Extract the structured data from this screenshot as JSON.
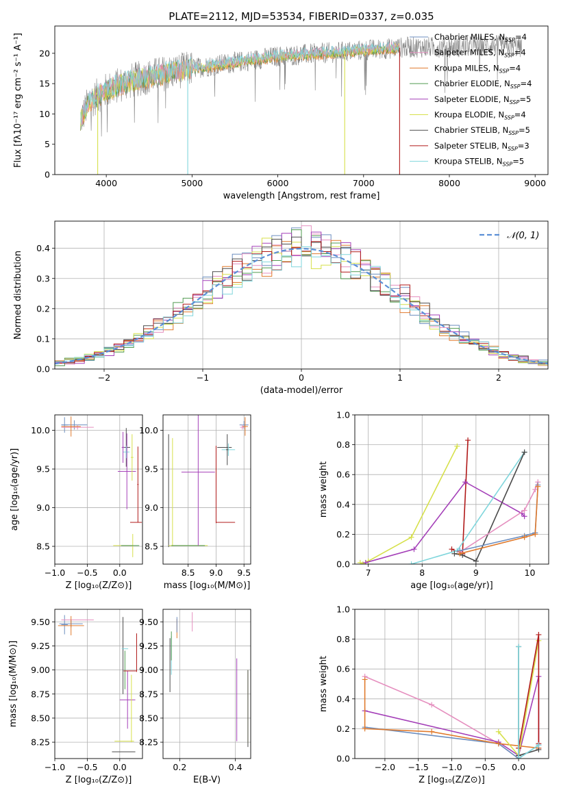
{
  "figure_title": "PLATE=2112, MJD=53534, FIBERID=0337, z=0.035",
  "colors": {
    "chabrier_miles": "#6c8ebf",
    "salpeter_miles": "#e58fbf",
    "kroupa_miles": "#e07a2c",
    "chabrier_elodie": "#4f9a4f",
    "salpeter_elodie": "#a43fb8",
    "kroupa_elodie": "#d6e04a",
    "chabrier_stelib": "#4a4a4a",
    "salpeter_stelib": "#b01818",
    "kroupa_stelib": "#7fd6dc",
    "gauss": "#5b8fd6"
  },
  "chart_data": [
    {
      "id": "spectrum",
      "type": "line",
      "xlabel": "wavelength [Angstrom, rest frame]",
      "ylabel": "Flux [fλ10⁻¹⁷ erg cm⁻² s⁻¹ A⁻¹]",
      "xlim": [
        3400,
        9150
      ],
      "ylim": [
        0,
        24.5
      ],
      "xticks": [
        4000,
        5000,
        6000,
        7000,
        8000,
        9000
      ],
      "yticks": [
        0,
        5,
        10,
        15,
        20
      ],
      "observed_range": [
        3700,
        8850
      ],
      "continuum_knots": [
        [
          3700,
          9
        ],
        [
          3800,
          12
        ],
        [
          3950,
          13.5
        ],
        [
          4100,
          14.5
        ],
        [
          4300,
          15.5
        ],
        [
          4600,
          16.5
        ],
        [
          5000,
          17.5
        ],
        [
          5500,
          18.5
        ],
        [
          6000,
          19.5
        ],
        [
          6500,
          20
        ],
        [
          7000,
          20.5
        ],
        [
          7500,
          21
        ],
        [
          8000,
          21
        ],
        [
          8500,
          21.3
        ],
        [
          8850,
          21
        ]
      ],
      "model_range": [
        3700,
        7420
      ],
      "model_drops": [
        {
          "x": 3900,
          "series": "Kroupa ELODIE"
        },
        {
          "x": 4950,
          "series": "Kroupa STELIB"
        },
        {
          "x": 6780,
          "series": "Kroupa ELODIE"
        },
        {
          "x": 7420,
          "series": "Salpeter STELIB"
        }
      ],
      "legend": [
        {
          "label": "Chabrier MILES, N",
          "sub": "SSP",
          "val": "=4",
          "color_key": "chabrier_miles"
        },
        {
          "label": "Salpeter MILES, N",
          "sub": "SSP",
          "val": "=4",
          "color_key": "salpeter_miles"
        },
        {
          "label": "Kroupa MILES, N",
          "sub": "SSP",
          "val": "=4",
          "color_key": "kroupa_miles"
        },
        {
          "label": "Chabrier ELODIE, N",
          "sub": "SSP",
          "val": "=4",
          "color_key": "chabrier_elodie"
        },
        {
          "label": "Salpeter ELODIE, N",
          "sub": "SSP",
          "val": "=5",
          "color_key": "salpeter_elodie"
        },
        {
          "label": "Kroupa ELODIE, N",
          "sub": "SSP",
          "val": "=4",
          "color_key": "kroupa_elodie"
        },
        {
          "label": "Chabrier STELIB, N",
          "sub": "SSP",
          "val": "=5",
          "color_key": "chabrier_stelib"
        },
        {
          "label": "Salpeter STELIB, N",
          "sub": "SSP",
          "val": "=3",
          "color_key": "salpeter_stelib"
        },
        {
          "label": "Kroupa STELIB, N",
          "sub": "SSP",
          "val": "=5",
          "color_key": "kroupa_stelib"
        }
      ]
    },
    {
      "id": "residuals",
      "type": "line",
      "xlabel": "(data-model)/error",
      "ylabel": "Normed distribution",
      "xlim": [
        -2.5,
        2.5
      ],
      "ylim": [
        0,
        0.49
      ],
      "xticks": [
        -2,
        -1,
        0,
        1,
        2
      ],
      "yticks": [
        0.0,
        0.1,
        0.2,
        0.3,
        0.4
      ],
      "bin_width": 0.1,
      "gauss_label": "𝒩(0, 1)"
    },
    {
      "id": "age_vs_Z",
      "type": "scatter",
      "xlabel": "Z [log₁₀(Z/Z⊙)]",
      "ylabel": "age  [log₁₀(age/yr)]",
      "xlim": [
        -1.0,
        0.35
      ],
      "ylim": [
        8.27,
        10.2
      ],
      "xticks": [
        -1.0,
        -0.5,
        0.0
      ],
      "yticks": [
        8.5,
        9.0,
        9.5,
        10.0
      ],
      "points": [
        {
          "x": -0.85,
          "y": 10.07,
          "xe": 0.05,
          "ye": 0.1,
          "c": "chabrier_miles"
        },
        {
          "x": -0.7,
          "y": 10.07,
          "xe": 0.2,
          "ye": 0.06,
          "c": "chabrier_miles"
        },
        {
          "x": -0.65,
          "y": 10.04,
          "xe": 0.25,
          "ye": 0.03,
          "c": "salpeter_miles"
        },
        {
          "x": -0.75,
          "y": 10.05,
          "xe": 0.15,
          "ye": 0.13,
          "c": "kroupa_miles"
        },
        {
          "x": 0.1,
          "y": 9.78,
          "xe": 0.06,
          "ye": 0.25,
          "c": "chabrier_stelib"
        },
        {
          "x": 0.1,
          "y": 9.72,
          "xe": 0.05,
          "ye": 0.08,
          "c": "kroupa_stelib"
        },
        {
          "x": 0.05,
          "y": 9.78,
          "xe": 0.02,
          "ye": 0.2,
          "c": "salpeter_elodie"
        },
        {
          "x": 0.11,
          "y": 9.47,
          "xe": 0.14,
          "ye": 0.49,
          "c": "salpeter_elodie"
        },
        {
          "x": 0.19,
          "y": 9.65,
          "xe": 0.02,
          "ye": 0.3,
          "c": "kroupa_elodie"
        },
        {
          "x": 0.25,
          "y": 8.81,
          "xe": 0.09,
          "ye": 0.0,
          "c": "salpeter_stelib"
        },
        {
          "x": 0.28,
          "y": 9.3,
          "xe": 0.01,
          "ye": 0.49,
          "c": "salpeter_stelib"
        },
        {
          "x": 0.05,
          "y": 8.51,
          "xe": 0.15,
          "ye": 0.0,
          "c": "kroupa_elodie"
        },
        {
          "x": 0.2,
          "y": 8.51,
          "xe": 0.0,
          "ye": 0.15,
          "c": "kroupa_elodie"
        },
        {
          "x": 0.16,
          "y": 8.51,
          "xe": 0.14,
          "ye": 0.0,
          "c": "chabrier_elodie"
        }
      ]
    },
    {
      "id": "age_vs_mass",
      "type": "scatter",
      "xlabel": "mass [log₁₀(M/M⊙)]",
      "xlim": [
        8.05,
        9.62
      ],
      "ylim": [
        8.27,
        10.2
      ],
      "xticks": [
        8.5,
        9.0,
        9.5
      ],
      "yticks": [
        8.5,
        9.0,
        9.5,
        10.0
      ],
      "points": [
        {
          "x": 8.15,
          "y": 9.22,
          "xe": 0.0,
          "ye": 0.73,
          "c": "chabrier_stelib"
        },
        {
          "x": 8.22,
          "y": 9.2,
          "xe": 0.0,
          "ye": 0.7,
          "c": "kroupa_elodie"
        },
        {
          "x": 8.5,
          "y": 8.51,
          "xe": 0.35,
          "ye": 0.0,
          "c": "kroupa_elodie"
        },
        {
          "x": 8.5,
          "y": 8.51,
          "xe": 0.3,
          "ye": 0.0,
          "c": "chabrier_elodie"
        },
        {
          "x": 8.68,
          "y": 9.46,
          "xe": 0.3,
          "ye": 0.95,
          "c": "salpeter_elodie"
        },
        {
          "x": 9.15,
          "y": 9.78,
          "xe": 0.13,
          "ye": 0.0,
          "c": "chabrier_stelib"
        },
        {
          "x": 9.0,
          "y": 9.3,
          "xe": 0.0,
          "ye": 0.5,
          "c": "salpeter_stelib"
        },
        {
          "x": 9.17,
          "y": 8.81,
          "xe": 0.17,
          "ye": 0.0,
          "c": "salpeter_stelib"
        },
        {
          "x": 9.22,
          "y": 9.75,
          "xe": 0.12,
          "ye": 0.08,
          "c": "kroupa_stelib"
        },
        {
          "x": 9.2,
          "y": 9.75,
          "xe": 0.02,
          "ye": 0.2,
          "c": "chabrier_stelib"
        },
        {
          "x": 9.5,
          "y": 10.07,
          "xe": 0.08,
          "ye": 0.05,
          "c": "chabrier_miles"
        },
        {
          "x": 9.52,
          "y": 10.05,
          "xe": 0.05,
          "ye": 0.12,
          "c": "kroupa_miles"
        },
        {
          "x": 9.47,
          "y": 10.04,
          "xe": 0.04,
          "ye": 0.03,
          "c": "salpeter_miles"
        }
      ]
    },
    {
      "id": "mw_vs_age",
      "type": "line",
      "xlabel": "age  [log₁₀(age/yr)]",
      "ylabel": "mass weight",
      "xlim": [
        6.75,
        10.35
      ],
      "ylim": [
        0,
        1.0
      ],
      "xticks": [
        7,
        8,
        9,
        10
      ],
      "yticks": [
        0.0,
        0.2,
        0.4,
        0.6,
        0.8,
        1.0
      ],
      "series": [
        {
          "c": "kroupa_elodie",
          "x": [
            6.85,
            6.9,
            7.0,
            7.8,
            8.65
          ],
          "y": [
            0.01,
            0.0,
            0.02,
            0.18,
            0.79
          ]
        },
        {
          "c": "salpeter_stelib",
          "x": [
            8.55,
            8.75,
            8.85
          ],
          "y": [
            0.1,
            0.07,
            0.83
          ]
        },
        {
          "c": "salpeter_elodie",
          "x": [
            6.95,
            7.85,
            8.8,
            9.85,
            9.9
          ],
          "y": [
            0.01,
            0.1,
            0.55,
            0.34,
            0.32
          ]
        },
        {
          "c": "kroupa_stelib",
          "x": [
            7.8,
            8.65,
            9.9
          ],
          "y": [
            0.0,
            0.09,
            0.75
          ]
        },
        {
          "c": "chabrier_stelib",
          "x": [
            8.6,
            8.75,
            9.0,
            9.9
          ],
          "y": [
            0.07,
            0.06,
            0.02,
            0.75
          ]
        },
        {
          "c": "salpeter_miles",
          "x": [
            8.7,
            9.9,
            10.1,
            10.15
          ],
          "y": [
            0.08,
            0.36,
            0.5,
            0.55
          ]
        },
        {
          "c": "chabrier_miles",
          "x": [
            8.7,
            9.9,
            10.1,
            10.15
          ],
          "y": [
            0.09,
            0.19,
            0.21,
            0.53
          ]
        },
        {
          "c": "kroupa_miles",
          "x": [
            8.7,
            9.9,
            10.1,
            10.15
          ],
          "y": [
            0.07,
            0.18,
            0.2,
            0.52
          ]
        }
      ]
    },
    {
      "id": "mass_vs_Z",
      "type": "scatter",
      "xlabel": "Z [log₁₀(Z/Z⊙)]",
      "ylabel": "mass [log₁₀(M/M⊙)]",
      "xlim": [
        -1.0,
        0.35
      ],
      "ylim": [
        8.08,
        9.63
      ],
      "xticks": [
        -1.0,
        -0.5,
        0.0
      ],
      "yticks": [
        8.25,
        8.5,
        8.75,
        9.0,
        9.25,
        9.5
      ],
      "points": [
        {
          "x": -0.85,
          "y": 9.47,
          "xe": 0.05,
          "ye": 0.1,
          "c": "chabrier_miles"
        },
        {
          "x": -0.75,
          "y": 9.48,
          "xe": 0.18,
          "ye": 0.04,
          "c": "chabrier_miles"
        },
        {
          "x": -0.65,
          "y": 9.52,
          "xe": 0.25,
          "ye": 0.0,
          "c": "salpeter_miles"
        },
        {
          "x": -0.75,
          "y": 9.46,
          "xe": 0.2,
          "ye": 0.1,
          "c": "kroupa_miles"
        },
        {
          "x": 0.05,
          "y": 9.15,
          "xe": 0.0,
          "ye": 0.4,
          "c": "chabrier_stelib"
        },
        {
          "x": 0.08,
          "y": 9.22,
          "xe": 0.05,
          "ye": 0.0,
          "c": "kroupa_stelib"
        },
        {
          "x": 0.08,
          "y": 9.0,
          "xe": 0.0,
          "ye": 0.2,
          "c": "chabrier_elodie"
        },
        {
          "x": 0.12,
          "y": 8.69,
          "xe": 0.12,
          "ye": 0.3,
          "c": "salpeter_elodie"
        },
        {
          "x": 0.16,
          "y": 8.99,
          "xe": 0.1,
          "ye": 0.0,
          "c": "salpeter_stelib"
        },
        {
          "x": 0.26,
          "y": 9.18,
          "xe": 0.0,
          "ye": 0.2,
          "c": "salpeter_stelib"
        },
        {
          "x": 0.18,
          "y": 8.6,
          "xe": 0.0,
          "ye": 0.35,
          "c": "kroupa_elodie"
        },
        {
          "x": 0.07,
          "y": 8.26,
          "xe": 0.15,
          "ye": 0.0,
          "c": "kroupa_elodie"
        },
        {
          "x": 0.06,
          "y": 8.15,
          "xe": 0.18,
          "ye": 0.0,
          "c": "chabrier_stelib"
        }
      ]
    },
    {
      "id": "mass_vs_ebv",
      "type": "scatter",
      "xlabel": "E(B-V)",
      "xlim": [
        0.14,
        0.455
      ],
      "ylim": [
        8.08,
        9.63
      ],
      "xticks": [
        0.2,
        0.4
      ],
      "yticks": [
        8.25,
        8.5,
        8.75,
        9.0,
        9.25,
        9.5
      ],
      "points": [
        {
          "x": 0.165,
          "y": 9.05,
          "xe": 0,
          "ye": 0.28,
          "c": "chabrier_stelib"
        },
        {
          "x": 0.17,
          "y": 9.15,
          "xe": 0,
          "ye": 0.2,
          "c": "kroupa_stelib"
        },
        {
          "x": 0.17,
          "y": 9.25,
          "xe": 0,
          "ye": 0.15,
          "c": "chabrier_elodie"
        },
        {
          "x": 0.19,
          "y": 9.43,
          "xe": 0,
          "ye": 0.1,
          "c": "kroupa_miles"
        },
        {
          "x": 0.19,
          "y": 9.47,
          "xe": 0,
          "ye": 0.08,
          "c": "chabrier_miles"
        },
        {
          "x": 0.245,
          "y": 9.5,
          "xe": 0,
          "ye": 0.1,
          "c": "salpeter_miles"
        },
        {
          "x": 0.405,
          "y": 8.69,
          "xe": 0,
          "ye": 0.43,
          "c": "salpeter_elodie"
        },
        {
          "x": 0.445,
          "y": 8.62,
          "xe": 0,
          "ye": 0.38,
          "c": "kroupa_elodie"
        },
        {
          "x": 0.445,
          "y": 8.6,
          "xe": 0,
          "ye": 0.4,
          "c": "chabrier_stelib"
        }
      ]
    },
    {
      "id": "mw_vs_Z",
      "type": "line",
      "xlabel": "Z [log₁₀(Z/Z⊙)]",
      "ylabel": "mass weight",
      "xlim": [
        -2.45,
        0.45
      ],
      "ylim": [
        0,
        1.0
      ],
      "xticks": [
        -2.0,
        -1.5,
        -1.0,
        -0.5,
        0.0
      ],
      "yticks": [
        0.0,
        0.2,
        0.4,
        0.6,
        0.8,
        1.0
      ],
      "series": [
        {
          "c": "salpeter_miles",
          "x": [
            -2.3,
            -1.3,
            -0.3,
            0.0
          ],
          "y": [
            0.55,
            0.36,
            0.1,
            0.0
          ]
        },
        {
          "c": "salpeter_elodie",
          "x": [
            -2.3,
            -0.3,
            0.0,
            0.3,
            0.3
          ],
          "y": [
            0.32,
            0.11,
            0.02,
            0.55,
            0.07
          ]
        },
        {
          "c": "chabrier_miles",
          "x": [
            -2.3,
            -0.3,
            0.0,
            0.3
          ],
          "y": [
            0.21,
            0.1,
            0.0,
            0.09
          ]
        },
        {
          "c": "kroupa_miles",
          "x": [
            -2.3,
            -2.3,
            -1.3,
            -0.3,
            0.3
          ],
          "y": [
            0.53,
            0.2,
            0.18,
            0.1,
            0.07
          ]
        },
        {
          "c": "kroupa_elodie",
          "x": [
            -0.3,
            0.0,
            0.3
          ],
          "y": [
            0.18,
            0.02,
            0.79
          ]
        },
        {
          "c": "salpeter_stelib",
          "x": [
            0.0,
            0.3,
            0.3
          ],
          "y": [
            0.07,
            0.83,
            0.1
          ]
        },
        {
          "c": "chabrier_stelib",
          "x": [
            0.0,
            0.0,
            0.3
          ],
          "y": [
            0.75,
            0.02,
            0.06
          ]
        },
        {
          "c": "kroupa_stelib",
          "x": [
            0.0,
            0.0,
            0.3
          ],
          "y": [
            0.75,
            0.0,
            0.09
          ]
        }
      ]
    }
  ]
}
